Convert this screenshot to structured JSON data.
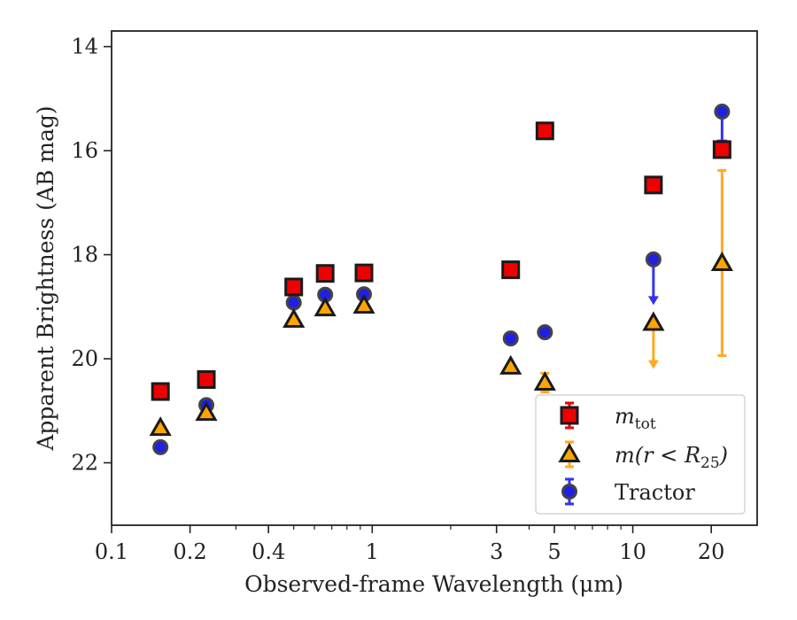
{
  "chart_data": {
    "type": "scatter",
    "xlabel": "Observed-frame Wavelength (μm)",
    "ylabel": "Apparent Brightness (AB mag)",
    "xscale": "log",
    "xlim": [
      0.1,
      30
    ],
    "ylim": [
      23.2,
      13.7
    ],
    "y_inverted": true,
    "xticks": [
      0.1,
      0.2,
      0.4,
      1,
      3,
      5,
      10,
      20
    ],
    "xtick_labels": [
      "0.1",
      "0.2",
      "0.4",
      "1",
      "3",
      "5",
      "10",
      "20"
    ],
    "yticks": [
      14,
      16,
      18,
      20,
      22
    ],
    "ytick_labels": [
      "14",
      "16",
      "18",
      "20",
      "22"
    ],
    "grid": false,
    "legend_position": "lower-right",
    "series": [
      {
        "name": "m_tot",
        "legend_label": {
          "main": "m",
          "sub": "tot"
        },
        "marker": "square",
        "color": "#ee0000",
        "points": [
          {
            "x": 0.154,
            "y": 20.63
          },
          {
            "x": 0.231,
            "y": 20.4
          },
          {
            "x": 0.5,
            "y": 18.62
          },
          {
            "x": 0.66,
            "y": 18.36
          },
          {
            "x": 0.93,
            "y": 18.35
          },
          {
            "x": 3.4,
            "y": 18.29
          },
          {
            "x": 4.6,
            "y": 15.62
          },
          {
            "x": 12.0,
            "y": 16.66
          },
          {
            "x": 22.0,
            "y": 15.98
          }
        ]
      },
      {
        "name": "m(r < R25)",
        "legend_label": {
          "main": "m(r < R",
          "sub": "25",
          "end": ")"
        },
        "marker": "triangle",
        "color": "#ffa500",
        "points": [
          {
            "x": 0.154,
            "y": 21.33
          },
          {
            "x": 0.231,
            "y": 21.04
          },
          {
            "x": 0.5,
            "y": 19.25
          },
          {
            "x": 0.66,
            "y": 19.03
          },
          {
            "x": 0.93,
            "y": 18.98
          },
          {
            "x": 3.4,
            "y": 20.15
          },
          {
            "x": 4.6,
            "y": 20.46,
            "yerr": [
              0.18,
              0.18
            ]
          },
          {
            "x": 12.0,
            "y": 19.31,
            "upper_limit_arrow_to": 20.18
          },
          {
            "x": 22.0,
            "y": 18.16,
            "yerr": [
              1.78,
              1.78
            ]
          }
        ]
      },
      {
        "name": "Tractor",
        "legend_label": {
          "main": "Tractor"
        },
        "marker": "circle",
        "color": "#1f1fe6",
        "points": [
          {
            "x": 0.154,
            "y": 21.7
          },
          {
            "x": 0.231,
            "y": 20.89
          },
          {
            "x": 0.5,
            "y": 18.92
          },
          {
            "x": 0.66,
            "y": 18.77
          },
          {
            "x": 0.93,
            "y": 18.76
          },
          {
            "x": 3.4,
            "y": 19.61
          },
          {
            "x": 4.6,
            "y": 19.49
          },
          {
            "x": 12.0,
            "y": 18.09,
            "upper_limit_arrow_to": 18.95
          },
          {
            "x": 22.0,
            "y": 15.25,
            "arrow_to": 15.94
          }
        ]
      }
    ]
  }
}
